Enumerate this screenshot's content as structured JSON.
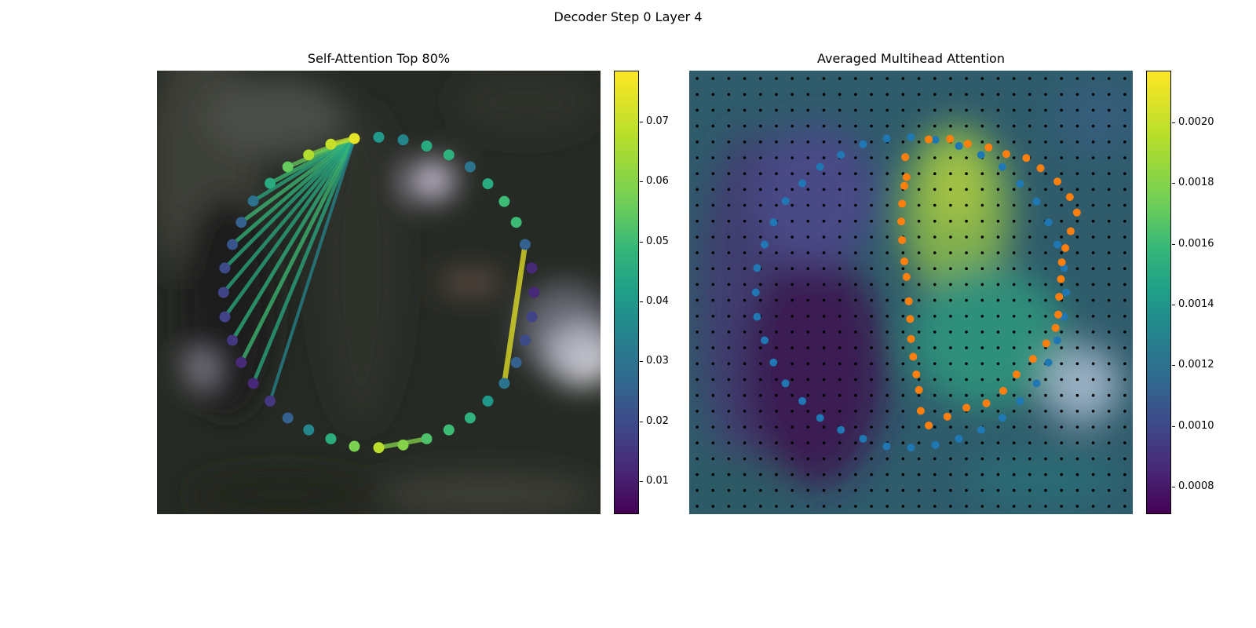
{
  "figure": {
    "title": "Decoder Step 0 Layer 4"
  },
  "chart_data": [
    {
      "type": "scatter",
      "title": "Self-Attention Top 80%",
      "xlim": [
        0,
        1
      ],
      "ylim": [
        0,
        1
      ],
      "colormap": "viridis",
      "colorbar": {
        "ticks": [
          0.01,
          0.02,
          0.03,
          0.04,
          0.05,
          0.06,
          0.07
        ],
        "range": [
          0.0045,
          0.0785
        ]
      },
      "points": [
        {
          "x": 0.445,
          "y": 0.847,
          "v": 0.075
        },
        {
          "x": 0.5,
          "y": 0.85,
          "v": 0.04
        },
        {
          "x": 0.555,
          "y": 0.844,
          "v": 0.035
        },
        {
          "x": 0.608,
          "y": 0.83,
          "v": 0.045
        },
        {
          "x": 0.658,
          "y": 0.81,
          "v": 0.047
        },
        {
          "x": 0.706,
          "y": 0.783,
          "v": 0.03
        },
        {
          "x": 0.746,
          "y": 0.745,
          "v": 0.045
        },
        {
          "x": 0.783,
          "y": 0.705,
          "v": 0.05
        },
        {
          "x": 0.81,
          "y": 0.658,
          "v": 0.05
        },
        {
          "x": 0.83,
          "y": 0.608,
          "v": 0.025
        },
        {
          "x": 0.845,
          "y": 0.555,
          "v": 0.012
        },
        {
          "x": 0.85,
          "y": 0.5,
          "v": 0.012
        },
        {
          "x": 0.845,
          "y": 0.445,
          "v": 0.018
        },
        {
          "x": 0.83,
          "y": 0.392,
          "v": 0.02
        },
        {
          "x": 0.81,
          "y": 0.342,
          "v": 0.025
        },
        {
          "x": 0.783,
          "y": 0.295,
          "v": 0.03
        },
        {
          "x": 0.746,
          "y": 0.255,
          "v": 0.04
        },
        {
          "x": 0.706,
          "y": 0.217,
          "v": 0.047
        },
        {
          "x": 0.658,
          "y": 0.19,
          "v": 0.05
        },
        {
          "x": 0.608,
          "y": 0.17,
          "v": 0.052
        },
        {
          "x": 0.555,
          "y": 0.156,
          "v": 0.06
        },
        {
          "x": 0.5,
          "y": 0.15,
          "v": 0.068
        },
        {
          "x": 0.445,
          "y": 0.153,
          "v": 0.058
        },
        {
          "x": 0.392,
          "y": 0.17,
          "v": 0.046
        },
        {
          "x": 0.342,
          "y": 0.19,
          "v": 0.035
        },
        {
          "x": 0.295,
          "y": 0.217,
          "v": 0.025
        },
        {
          "x": 0.255,
          "y": 0.255,
          "v": 0.015
        },
        {
          "x": 0.217,
          "y": 0.295,
          "v": 0.012
        },
        {
          "x": 0.19,
          "y": 0.342,
          "v": 0.012
        },
        {
          "x": 0.17,
          "y": 0.392,
          "v": 0.015
        },
        {
          "x": 0.153,
          "y": 0.445,
          "v": 0.018
        },
        {
          "x": 0.15,
          "y": 0.5,
          "v": 0.018
        },
        {
          "x": 0.153,
          "y": 0.555,
          "v": 0.02
        },
        {
          "x": 0.17,
          "y": 0.608,
          "v": 0.022
        },
        {
          "x": 0.19,
          "y": 0.658,
          "v": 0.025
        },
        {
          "x": 0.217,
          "y": 0.706,
          "v": 0.03
        },
        {
          "x": 0.255,
          "y": 0.746,
          "v": 0.045
        },
        {
          "x": 0.295,
          "y": 0.783,
          "v": 0.055
        },
        {
          "x": 0.342,
          "y": 0.81,
          "v": 0.067
        },
        {
          "x": 0.392,
          "y": 0.834,
          "v": 0.07
        }
      ],
      "edges": [
        {
          "a": 0,
          "b": 38,
          "v": 0.06
        },
        {
          "a": 0,
          "b": 37,
          "v": 0.055
        },
        {
          "a": 0,
          "b": 36,
          "v": 0.05
        },
        {
          "a": 0,
          "b": 35,
          "v": 0.045
        },
        {
          "a": 0,
          "b": 34,
          "v": 0.05
        },
        {
          "a": 0,
          "b": 33,
          "v": 0.048
        },
        {
          "a": 0,
          "b": 32,
          "v": 0.045
        },
        {
          "a": 0,
          "b": 31,
          "v": 0.045
        },
        {
          "a": 0,
          "b": 30,
          "v": 0.045
        },
        {
          "a": 0,
          "b": 29,
          "v": 0.047
        },
        {
          "a": 0,
          "b": 28,
          "v": 0.05
        },
        {
          "a": 0,
          "b": 27,
          "v": 0.045
        },
        {
          "a": 0,
          "b": 26,
          "v": 0.035
        },
        {
          "a": 0,
          "b": 39,
          "v": 0.07
        },
        {
          "a": 9,
          "b": 15,
          "v": 0.075
        },
        {
          "a": 21,
          "b": 19,
          "v": 0.06
        }
      ]
    },
    {
      "type": "scatter",
      "title": "Averaged Multihead Attention",
      "xlim": [
        0,
        1
      ],
      "ylim": [
        0,
        1
      ],
      "colormap": "viridis",
      "colorbar": {
        "ticks": [
          0.0008,
          0.001,
          0.0012,
          0.0014,
          0.0016,
          0.0018,
          0.002
        ],
        "range": [
          0.00071,
          0.00217
        ]
      },
      "grid_points": {
        "rows": 28,
        "cols": 28
      },
      "series": [
        {
          "color": "#1f77b4",
          "points": [
            {
              "x": 0.5,
              "y": 0.85
            },
            {
              "x": 0.555,
              "y": 0.844
            },
            {
              "x": 0.608,
              "y": 0.83
            },
            {
              "x": 0.658,
              "y": 0.81
            },
            {
              "x": 0.706,
              "y": 0.783
            },
            {
              "x": 0.746,
              "y": 0.745
            },
            {
              "x": 0.783,
              "y": 0.705
            },
            {
              "x": 0.81,
              "y": 0.658
            },
            {
              "x": 0.83,
              "y": 0.608
            },
            {
              "x": 0.845,
              "y": 0.555
            },
            {
              "x": 0.85,
              "y": 0.5
            },
            {
              "x": 0.845,
              "y": 0.445
            },
            {
              "x": 0.83,
              "y": 0.392
            },
            {
              "x": 0.81,
              "y": 0.342
            },
            {
              "x": 0.783,
              "y": 0.295
            },
            {
              "x": 0.746,
              "y": 0.255
            },
            {
              "x": 0.706,
              "y": 0.217
            },
            {
              "x": 0.658,
              "y": 0.19
            },
            {
              "x": 0.608,
              "y": 0.17
            },
            {
              "x": 0.555,
              "y": 0.156
            },
            {
              "x": 0.5,
              "y": 0.15
            },
            {
              "x": 0.445,
              "y": 0.153
            },
            {
              "x": 0.392,
              "y": 0.17
            },
            {
              "x": 0.342,
              "y": 0.19
            },
            {
              "x": 0.295,
              "y": 0.217
            },
            {
              "x": 0.255,
              "y": 0.255
            },
            {
              "x": 0.217,
              "y": 0.295
            },
            {
              "x": 0.19,
              "y": 0.342
            },
            {
              "x": 0.17,
              "y": 0.392
            },
            {
              "x": 0.153,
              "y": 0.445
            },
            {
              "x": 0.15,
              "y": 0.5
            },
            {
              "x": 0.153,
              "y": 0.555
            },
            {
              "x": 0.17,
              "y": 0.608
            },
            {
              "x": 0.19,
              "y": 0.658
            },
            {
              "x": 0.217,
              "y": 0.706
            },
            {
              "x": 0.255,
              "y": 0.746
            },
            {
              "x": 0.295,
              "y": 0.783
            },
            {
              "x": 0.342,
              "y": 0.81
            },
            {
              "x": 0.392,
              "y": 0.834
            },
            {
              "x": 0.445,
              "y": 0.847
            }
          ]
        },
        {
          "color": "#ff7f0e",
          "points": [
            {
              "x": 0.54,
              "y": 0.845
            },
            {
              "x": 0.588,
              "y": 0.846
            },
            {
              "x": 0.628,
              "y": 0.835
            },
            {
              "x": 0.675,
              "y": 0.827
            },
            {
              "x": 0.715,
              "y": 0.812
            },
            {
              "x": 0.76,
              "y": 0.803
            },
            {
              "x": 0.792,
              "y": 0.78
            },
            {
              "x": 0.83,
              "y": 0.75
            },
            {
              "x": 0.858,
              "y": 0.715
            },
            {
              "x": 0.874,
              "y": 0.68
            },
            {
              "x": 0.86,
              "y": 0.638
            },
            {
              "x": 0.848,
              "y": 0.6
            },
            {
              "x": 0.84,
              "y": 0.568
            },
            {
              "x": 0.838,
              "y": 0.53
            },
            {
              "x": 0.834,
              "y": 0.49
            },
            {
              "x": 0.832,
              "y": 0.45
            },
            {
              "x": 0.826,
              "y": 0.42
            },
            {
              "x": 0.805,
              "y": 0.385
            },
            {
              "x": 0.775,
              "y": 0.35
            },
            {
              "x": 0.738,
              "y": 0.315
            },
            {
              "x": 0.708,
              "y": 0.278
            },
            {
              "x": 0.67,
              "y": 0.25
            },
            {
              "x": 0.625,
              "y": 0.24
            },
            {
              "x": 0.582,
              "y": 0.22
            },
            {
              "x": 0.54,
              "y": 0.2
            },
            {
              "x": 0.522,
              "y": 0.233
            },
            {
              "x": 0.518,
              "y": 0.28
            },
            {
              "x": 0.512,
              "y": 0.315
            },
            {
              "x": 0.505,
              "y": 0.355
            },
            {
              "x": 0.5,
              "y": 0.395
            },
            {
              "x": 0.498,
              "y": 0.44
            },
            {
              "x": 0.495,
              "y": 0.48
            },
            {
              "x": 0.49,
              "y": 0.535
            },
            {
              "x": 0.485,
              "y": 0.57
            },
            {
              "x": 0.48,
              "y": 0.618
            },
            {
              "x": 0.478,
              "y": 0.66
            },
            {
              "x": 0.48,
              "y": 0.7
            },
            {
              "x": 0.485,
              "y": 0.74
            },
            {
              "x": 0.49,
              "y": 0.76
            },
            {
              "x": 0.487,
              "y": 0.805
            }
          ]
        }
      ]
    }
  ]
}
